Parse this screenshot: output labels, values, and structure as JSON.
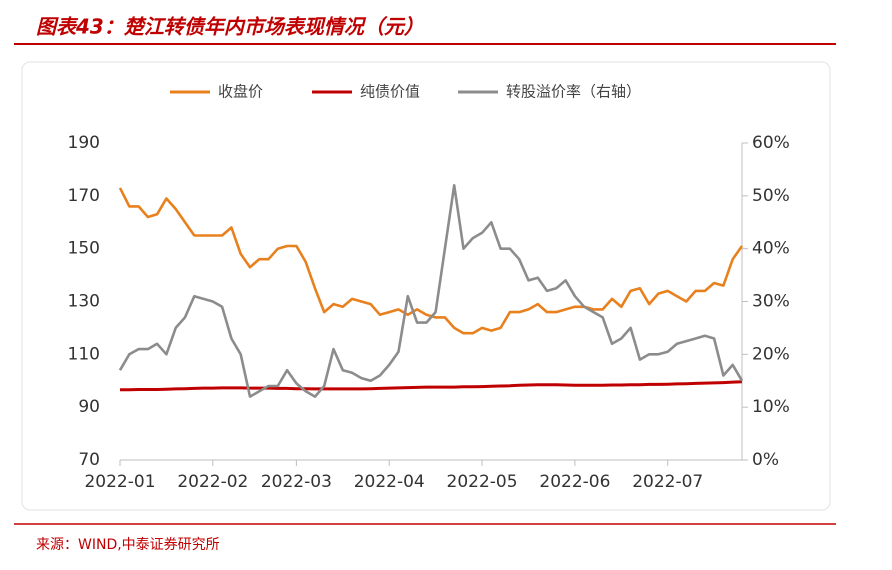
{
  "chart_data": {
    "type": "line",
    "title": "图表43：楚江转债年内市场表现情况（元）",
    "source": "来源：WIND,中泰证券研究所",
    "categories": [
      "2022-01",
      null,
      null,
      null,
      null,
      null,
      null,
      null,
      null,
      null,
      "2022-02",
      null,
      null,
      null,
      null,
      null,
      null,
      null,
      null,
      "2022-03",
      null,
      null,
      null,
      null,
      null,
      null,
      null,
      null,
      null,
      "2022-04",
      null,
      null,
      null,
      null,
      null,
      null,
      null,
      null,
      null,
      "2022-05",
      null,
      null,
      null,
      null,
      null,
      null,
      null,
      null,
      null,
      "2022-06",
      null,
      null,
      null,
      null,
      null,
      null,
      null,
      null,
      null,
      "2022-07",
      null,
      null,
      null,
      null,
      null,
      null,
      null,
      null
    ],
    "series": [
      {
        "name": "收盘价",
        "color": "#e8801e",
        "axis": "y",
        "values": [
          173,
          166,
          166,
          162,
          163,
          169,
          165,
          160,
          155,
          155,
          155,
          155,
          158,
          148,
          143,
          146,
          146,
          150,
          151,
          151,
          145,
          135,
          126,
          129,
          128,
          131,
          130,
          129,
          125,
          126,
          127,
          125,
          127,
          125,
          124,
          124,
          120,
          118,
          118,
          120,
          119,
          120,
          126,
          126,
          127,
          129,
          126,
          126,
          127,
          128,
          128,
          127,
          127,
          131,
          128,
          134,
          135,
          129,
          133,
          134,
          132,
          130,
          134,
          134,
          137,
          136,
          146,
          151
        ]
      },
      {
        "name": "纯债价值",
        "color": "#c00000",
        "axis": "y",
        "values": [
          96.6,
          96.6,
          96.7,
          96.7,
          96.7,
          96.8,
          96.9,
          97.0,
          97.1,
          97.2,
          97.2,
          97.3,
          97.3,
          97.3,
          97.2,
          97.2,
          97.2,
          97.1,
          97.1,
          97.0,
          97.0,
          96.9,
          96.9,
          96.9,
          96.9,
          96.9,
          96.9,
          97.0,
          97.1,
          97.2,
          97.3,
          97.4,
          97.5,
          97.6,
          97.6,
          97.6,
          97.6,
          97.7,
          97.7,
          97.8,
          97.9,
          98.0,
          98.1,
          98.3,
          98.4,
          98.5,
          98.5,
          98.5,
          98.4,
          98.3,
          98.3,
          98.3,
          98.3,
          98.4,
          98.4,
          98.5,
          98.5,
          98.6,
          98.6,
          98.7,
          98.8,
          98.9,
          99.0,
          99.1,
          99.2,
          99.3,
          99.5,
          99.6
        ]
      },
      {
        "name": "转股溢价率（右轴）",
        "color": "#8c8c8c",
        "axis": "y2",
        "values": [
          17,
          20,
          21,
          21,
          22,
          20,
          25,
          27,
          31,
          30.5,
          30,
          29,
          23,
          20,
          12,
          13,
          14,
          14,
          17,
          14.5,
          13,
          12,
          14,
          21,
          17,
          16.5,
          15.5,
          15,
          16,
          18,
          20.5,
          31,
          26,
          26,
          28,
          40,
          52,
          40,
          42,
          43,
          45,
          40,
          40,
          38,
          34,
          34.5,
          32,
          32.5,
          34,
          31,
          29,
          28,
          27,
          22,
          23,
          25,
          19,
          20,
          20,
          20.5,
          22,
          22.5,
          23,
          23.5,
          23,
          16,
          18,
          15
        ]
      }
    ],
    "ylim": [
      70,
      190
    ],
    "yticks": [
      70,
      90,
      110,
      130,
      150,
      170,
      190
    ],
    "y2lim": [
      0,
      60
    ],
    "y2ticks": [
      {
        "value": 0,
        "label": "0%"
      },
      {
        "value": 10,
        "label": "10%"
      },
      {
        "value": 20,
        "label": "20%"
      },
      {
        "value": 30,
        "label": "30%"
      },
      {
        "value": 40,
        "label": "40%"
      },
      {
        "value": 50,
        "label": "50%"
      },
      {
        "value": 60,
        "label": "60%"
      }
    ],
    "legend": "top"
  }
}
